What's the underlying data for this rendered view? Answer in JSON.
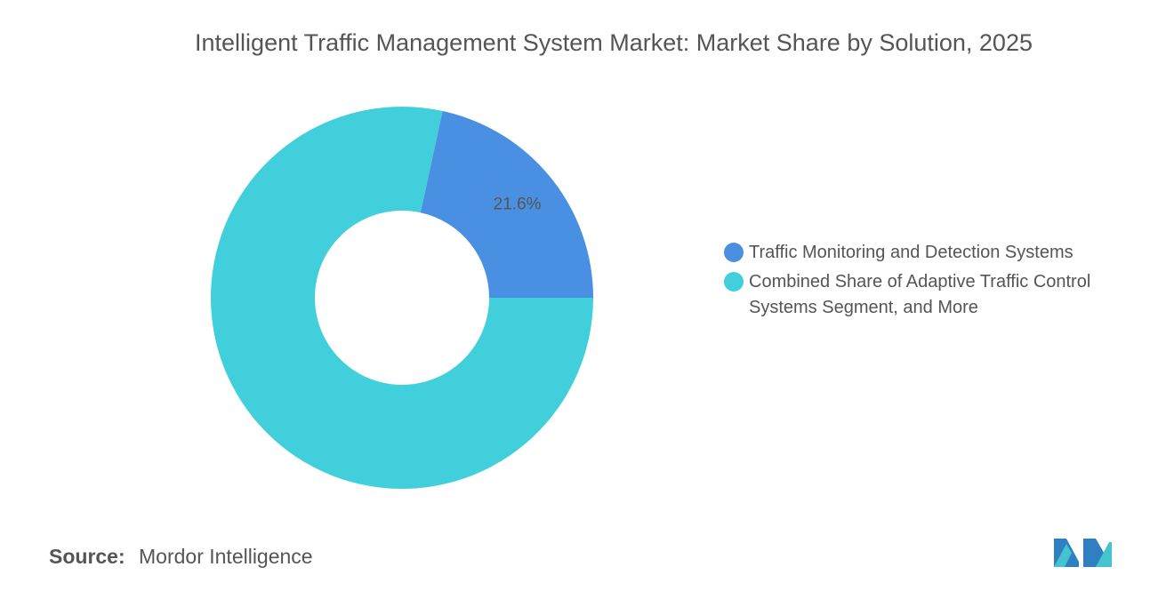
{
  "chart_data": {
    "type": "donut",
    "title": "Intelligent Traffic Management System Market: Market Share by Solution, 2025",
    "categories": [
      "Traffic Monitoring and Detection Systems",
      "Combined Share of Adaptive Traffic Control Systems Segment, and More"
    ],
    "values": [
      21.6,
      78.4
    ],
    "value_labels": [
      "21.6%",
      null
    ],
    "colors": [
      "#4a90e2",
      "#40cfdb"
    ],
    "legend": "right",
    "source_label": "Source:",
    "source": "Mordor Intelligence"
  }
}
